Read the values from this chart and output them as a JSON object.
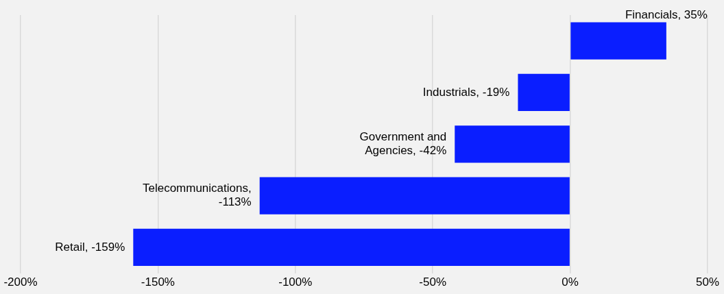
{
  "chart_data": {
    "type": "bar",
    "orientation": "horizontal",
    "categories": [
      null,
      null,
      null,
      null,
      null
    ],
    "values": [
      35,
      -19,
      -42,
      -113,
      -159
    ],
    "value_labels": [
      "Financials, 35%",
      "Industrials, -19%",
      "Government and Agencies, -42%",
      "Telecommunications, -113%",
      "Retail, -159%"
    ],
    "color": "#0a1eff",
    "xlim": [
      -200,
      50
    ],
    "xticks": [
      {
        "value": -200,
        "label": "-200%"
      },
      {
        "value": -150,
        "label": "-150%"
      },
      {
        "value": -100,
        "label": "-100%"
      },
      {
        "value": -50,
        "label": "-50%"
      },
      {
        "value": 0,
        "label": "0%"
      },
      {
        "value": 50,
        "label": "50%"
      }
    ],
    "grid": "x",
    "legend": false,
    "tick_labels": "x"
  }
}
